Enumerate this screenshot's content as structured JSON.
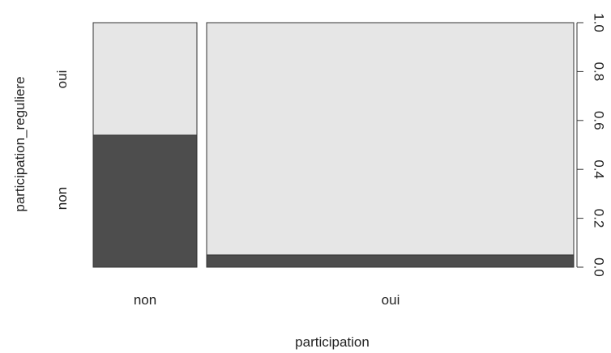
{
  "chart_data": {
    "type": "mosaic",
    "xlabel": "participation",
    "ylabel": "participation_reguliere",
    "x_categories": [
      "non",
      "oui"
    ],
    "y_categories": [
      "non",
      "oui"
    ],
    "x_widths": [
      0.25,
      0.75
    ],
    "y_proportions": {
      "non": [
        0.54,
        0.46
      ],
      "oui": [
        0.05,
        0.95
      ]
    },
    "y_axis_right": {
      "ticks": [
        "0.0",
        "0.2",
        "0.4",
        "0.6",
        "0.8",
        "1.0"
      ],
      "ylim": [
        0,
        1
      ]
    },
    "colors": {
      "non": "#4d4d4d",
      "oui": "#e6e6e6",
      "border": "#333333"
    }
  }
}
